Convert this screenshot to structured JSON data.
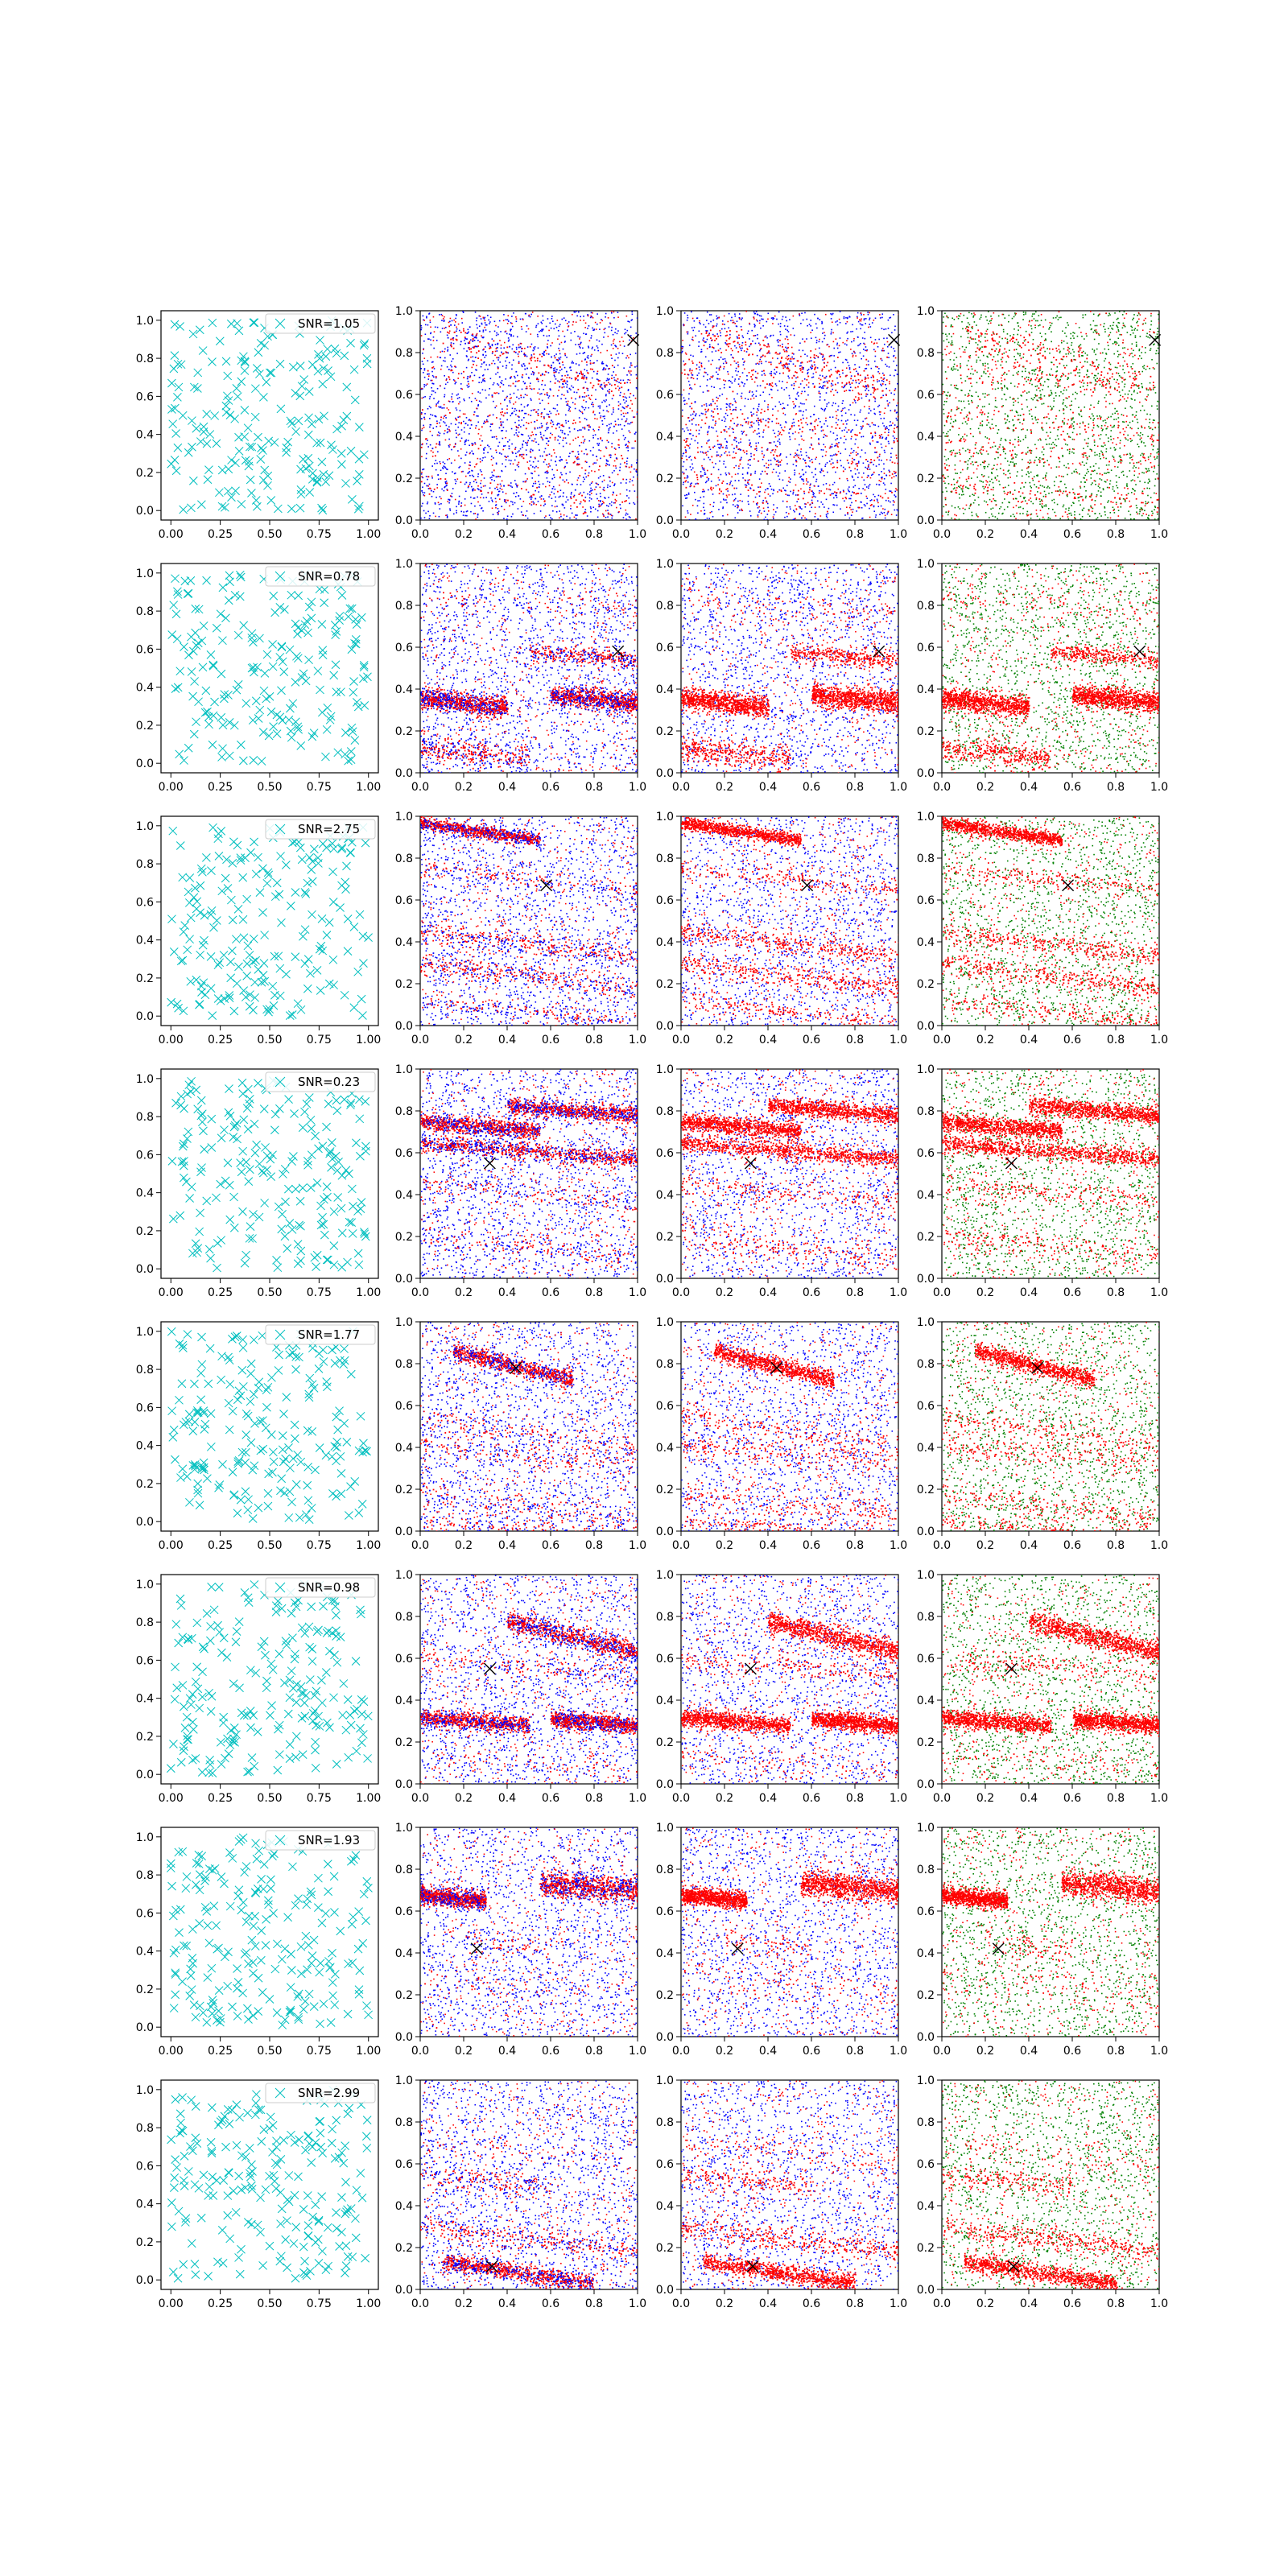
{
  "chart_data": {
    "type": "scatter",
    "layout": "8 rows x 4 columns of scatter panels",
    "colors": {
      "uniform": "#00bfbf",
      "red": "#ff0000",
      "blue": "#0000ff",
      "green": "#008000",
      "marker": "#000000"
    },
    "xlim": [
      0,
      1
    ],
    "ylim": [
      0,
      1
    ],
    "grid": false,
    "first_column": {
      "xticks": [
        "0.00",
        "0.25",
        "0.50",
        "0.75",
        "1.00"
      ],
      "yticks": [
        "0.0",
        "0.2",
        "0.4",
        "0.6",
        "0.8",
        "1.0"
      ],
      "marker": "x",
      "legend_location": "top-right"
    },
    "other_columns": {
      "xticks": [
        "0.0",
        "0.2",
        "0.4",
        "0.6",
        "0.8",
        "1.0"
      ],
      "yticks": [
        "0.0",
        "0.2",
        "0.4",
        "0.6",
        "0.8",
        "1.0"
      ],
      "series_pairs": [
        [
          "red",
          "blue"
        ],
        [
          "red",
          "blue"
        ],
        [
          "red",
          "green"
        ]
      ]
    },
    "rows": [
      {
        "snr_label": "SNR=1.05",
        "marker_point": [
          0.98,
          0.86
        ],
        "streaks": [
          {
            "y0": 0.92,
            "slope": -0.3,
            "xa": 0.1,
            "xb": 0.9,
            "spread": 0.04,
            "dens": "light"
          },
          {
            "y0": 0.72,
            "slope": -0.08,
            "xa": 0.0,
            "xb": 1.0,
            "spread": 0.03,
            "dens": "faint"
          },
          {
            "y0": 0.52,
            "slope": -0.12,
            "xa": 0.0,
            "xb": 1.0,
            "spread": 0.03,
            "dens": "faint"
          },
          {
            "y0": 0.36,
            "slope": -0.1,
            "xa": 0.0,
            "xb": 1.0,
            "spread": 0.03,
            "dens": "faint"
          },
          {
            "y0": 0.18,
            "slope": -0.1,
            "xa": 0.0,
            "xb": 1.0,
            "spread": 0.03,
            "dens": "faint"
          }
        ]
      },
      {
        "snr_label": "SNR=0.78",
        "marker_point": [
          0.91,
          0.58
        ],
        "streaks": [
          {
            "y0": 0.36,
            "slope": -0.12,
            "xa": 0.0,
            "xb": 0.4,
            "spread": 0.025,
            "dens": "dense"
          },
          {
            "y0": 0.42,
            "slope": -0.08,
            "xa": 0.6,
            "xb": 1.0,
            "spread": 0.025,
            "dens": "dense"
          },
          {
            "y0": 0.62,
            "slope": -0.08,
            "xa": 0.5,
            "xb": 1.0,
            "spread": 0.02,
            "dens": "medium"
          },
          {
            "y0": 0.12,
            "slope": -0.1,
            "xa": 0.0,
            "xb": 0.5,
            "spread": 0.03,
            "dens": "medium"
          },
          {
            "y0": 0.85,
            "slope": -0.08,
            "xa": 0.0,
            "xb": 1.0,
            "spread": 0.03,
            "dens": "faint"
          }
        ]
      },
      {
        "snr_label": "SNR=2.75",
        "marker_point": [
          0.58,
          0.67
        ],
        "streaks": [
          {
            "y0": 0.97,
            "slope": -0.15,
            "xa": 0.0,
            "xb": 0.55,
            "spread": 0.015,
            "dens": "dense"
          },
          {
            "y0": 0.75,
            "slope": -0.1,
            "xa": 0.0,
            "xb": 1.0,
            "spread": 0.02,
            "dens": "light"
          },
          {
            "y0": 0.45,
            "slope": -0.12,
            "xa": 0.0,
            "xb": 1.0,
            "spread": 0.025,
            "dens": "medium"
          },
          {
            "y0": 0.3,
            "slope": -0.12,
            "xa": 0.0,
            "xb": 1.0,
            "spread": 0.025,
            "dens": "medium"
          },
          {
            "y0": 0.12,
            "slope": -0.1,
            "xa": 0.0,
            "xb": 1.0,
            "spread": 0.02,
            "dens": "light"
          }
        ]
      },
      {
        "snr_label": "SNR=0.23",
        "marker_point": [
          0.32,
          0.55
        ],
        "streaks": [
          {
            "y0": 0.75,
            "slope": -0.08,
            "xa": 0.0,
            "xb": 0.55,
            "spread": 0.02,
            "dens": "dense"
          },
          {
            "y0": 0.86,
            "slope": -0.08,
            "xa": 0.4,
            "xb": 1.0,
            "spread": 0.02,
            "dens": "dense"
          },
          {
            "y0": 0.65,
            "slope": -0.08,
            "xa": 0.0,
            "xb": 1.0,
            "spread": 0.02,
            "dens": "dense"
          },
          {
            "y0": 0.45,
            "slope": -0.08,
            "xa": 0.0,
            "xb": 1.0,
            "spread": 0.03,
            "dens": "light"
          },
          {
            "y0": 0.2,
            "slope": -0.1,
            "xa": 0.0,
            "xb": 1.0,
            "spread": 0.03,
            "dens": "light"
          }
        ]
      },
      {
        "snr_label": "SNR=1.77",
        "marker_point": [
          0.44,
          0.78
        ],
        "streaks": [
          {
            "y0": 0.9,
            "slope": -0.25,
            "xa": 0.15,
            "xb": 0.7,
            "spread": 0.02,
            "dens": "dense"
          },
          {
            "y0": 0.55,
            "slope": -0.15,
            "xa": 0.0,
            "xb": 1.0,
            "spread": 0.03,
            "dens": "light"
          },
          {
            "y0": 0.42,
            "slope": -0.1,
            "xa": 0.0,
            "xb": 1.0,
            "spread": 0.03,
            "dens": "light"
          },
          {
            "y0": 0.18,
            "slope": -0.12,
            "xa": 0.0,
            "xb": 1.0,
            "spread": 0.03,
            "dens": "light"
          },
          {
            "y0": 0.05,
            "slope": -0.08,
            "xa": 0.0,
            "xb": 1.0,
            "spread": 0.02,
            "dens": "light"
          }
        ]
      },
      {
        "snr_label": "SNR=0.98",
        "marker_point": [
          0.32,
          0.55
        ],
        "streaks": [
          {
            "y0": 0.88,
            "slope": -0.25,
            "xa": 0.4,
            "xb": 1.0,
            "spread": 0.025,
            "dens": "dense"
          },
          {
            "y0": 0.32,
            "slope": -0.08,
            "xa": 0.0,
            "xb": 0.5,
            "spread": 0.02,
            "dens": "dense"
          },
          {
            "y0": 0.36,
            "slope": -0.08,
            "xa": 0.6,
            "xb": 1.0,
            "spread": 0.02,
            "dens": "dense"
          },
          {
            "y0": 0.6,
            "slope": -0.08,
            "xa": 0.0,
            "xb": 1.0,
            "spread": 0.03,
            "dens": "light"
          },
          {
            "y0": 0.15,
            "slope": -0.1,
            "xa": 0.0,
            "xb": 1.0,
            "spread": 0.03,
            "dens": "faint"
          }
        ]
      },
      {
        "snr_label": "SNR=1.93",
        "marker_point": [
          0.26,
          0.42
        ],
        "streaks": [
          {
            "y0": 0.68,
            "slope": -0.1,
            "xa": 0.0,
            "xb": 0.3,
            "spread": 0.02,
            "dens": "dense"
          },
          {
            "y0": 0.78,
            "slope": -0.08,
            "xa": 0.55,
            "xb": 1.0,
            "spread": 0.03,
            "dens": "dense"
          },
          {
            "y0": 0.5,
            "slope": -0.15,
            "xa": 0.2,
            "xb": 0.6,
            "spread": 0.03,
            "dens": "faint"
          },
          {
            "y0": 0.3,
            "slope": -0.1,
            "xa": 0.0,
            "xb": 1.0,
            "spread": 0.04,
            "dens": "faint"
          }
        ]
      },
      {
        "snr_label": "SNR=2.99",
        "marker_point": [
          0.33,
          0.11
        ],
        "streaks": [
          {
            "y0": 0.15,
            "slope": -0.15,
            "xa": 0.1,
            "xb": 0.8,
            "spread": 0.02,
            "dens": "dense"
          },
          {
            "y0": 0.3,
            "slope": -0.12,
            "xa": 0.0,
            "xb": 1.0,
            "spread": 0.025,
            "dens": "medium"
          },
          {
            "y0": 0.55,
            "slope": -0.1,
            "xa": 0.0,
            "xb": 0.6,
            "spread": 0.03,
            "dens": "light"
          },
          {
            "y0": 0.7,
            "slope": -0.1,
            "xa": 0.0,
            "xb": 1.0,
            "spread": 0.03,
            "dens": "faint"
          }
        ]
      }
    ]
  }
}
